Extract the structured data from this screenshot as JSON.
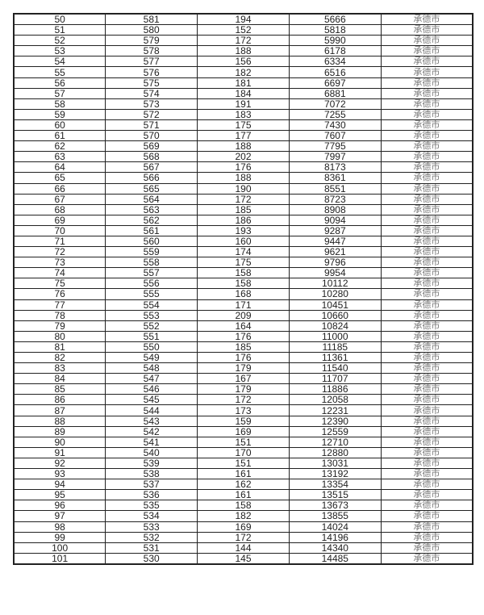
{
  "table": {
    "rows": [
      [
        "50",
        "581",
        "194",
        "5666",
        "承德市"
      ],
      [
        "51",
        "580",
        "152",
        "5818",
        "承德市"
      ],
      [
        "52",
        "579",
        "172",
        "5990",
        "承德市"
      ],
      [
        "53",
        "578",
        "188",
        "6178",
        "承德市"
      ],
      [
        "54",
        "577",
        "156",
        "6334",
        "承德市"
      ],
      [
        "55",
        "576",
        "182",
        "6516",
        "承德市"
      ],
      [
        "56",
        "575",
        "181",
        "6697",
        "承德市"
      ],
      [
        "57",
        "574",
        "184",
        "6881",
        "承德市"
      ],
      [
        "58",
        "573",
        "191",
        "7072",
        "承德市"
      ],
      [
        "59",
        "572",
        "183",
        "7255",
        "承德市"
      ],
      [
        "60",
        "571",
        "175",
        "7430",
        "承德市"
      ],
      [
        "61",
        "570",
        "177",
        "7607",
        "承德市"
      ],
      [
        "62",
        "569",
        "188",
        "7795",
        "承德市"
      ],
      [
        "63",
        "568",
        "202",
        "7997",
        "承德市"
      ],
      [
        "64",
        "567",
        "176",
        "8173",
        "承德市"
      ],
      [
        "65",
        "566",
        "188",
        "8361",
        "承德市"
      ],
      [
        "66",
        "565",
        "190",
        "8551",
        "承德市"
      ],
      [
        "67",
        "564",
        "172",
        "8723",
        "承德市"
      ],
      [
        "68",
        "563",
        "185",
        "8908",
        "承德市"
      ],
      [
        "69",
        "562",
        "186",
        "9094",
        "承德市"
      ],
      [
        "70",
        "561",
        "193",
        "9287",
        "承德市"
      ],
      [
        "71",
        "560",
        "160",
        "9447",
        "承德市"
      ],
      [
        "72",
        "559",
        "174",
        "9621",
        "承德市"
      ],
      [
        "73",
        "558",
        "175",
        "9796",
        "承德市"
      ],
      [
        "74",
        "557",
        "158",
        "9954",
        "承德市"
      ],
      [
        "75",
        "556",
        "158",
        "10112",
        "承德市"
      ],
      [
        "76",
        "555",
        "168",
        "10280",
        "承德市"
      ],
      [
        "77",
        "554",
        "171",
        "10451",
        "承德市"
      ],
      [
        "78",
        "553",
        "209",
        "10660",
        "承德市"
      ],
      [
        "79",
        "552",
        "164",
        "10824",
        "承德市"
      ],
      [
        "80",
        "551",
        "176",
        "11000",
        "承德市"
      ],
      [
        "81",
        "550",
        "185",
        "11185",
        "承德市"
      ],
      [
        "82",
        "549",
        "176",
        "11361",
        "承德市"
      ],
      [
        "83",
        "548",
        "179",
        "11540",
        "承德市"
      ],
      [
        "84",
        "547",
        "167",
        "11707",
        "承德市"
      ],
      [
        "85",
        "546",
        "179",
        "11886",
        "承德市"
      ],
      [
        "86",
        "545",
        "172",
        "12058",
        "承德市"
      ],
      [
        "87",
        "544",
        "173",
        "12231",
        "承德市"
      ],
      [
        "88",
        "543",
        "159",
        "12390",
        "承德市"
      ],
      [
        "89",
        "542",
        "169",
        "12559",
        "承德市"
      ],
      [
        "90",
        "541",
        "151",
        "12710",
        "承德市"
      ],
      [
        "91",
        "540",
        "170",
        "12880",
        "承德市"
      ],
      [
        "92",
        "539",
        "151",
        "13031",
        "承德市"
      ],
      [
        "93",
        "538",
        "161",
        "13192",
        "承德市"
      ],
      [
        "94",
        "537",
        "162",
        "13354",
        "承德市"
      ],
      [
        "95",
        "536",
        "161",
        "13515",
        "承德市"
      ],
      [
        "96",
        "535",
        "158",
        "13673",
        "承德市"
      ],
      [
        "97",
        "534",
        "182",
        "13855",
        "承德市"
      ],
      [
        "98",
        "533",
        "169",
        "14024",
        "承德市"
      ],
      [
        "99",
        "532",
        "172",
        "14196",
        "承德市"
      ],
      [
        "100",
        "531",
        "144",
        "14340",
        "承德市"
      ],
      [
        "101",
        "530",
        "145",
        "14485",
        "承德市"
      ]
    ]
  }
}
